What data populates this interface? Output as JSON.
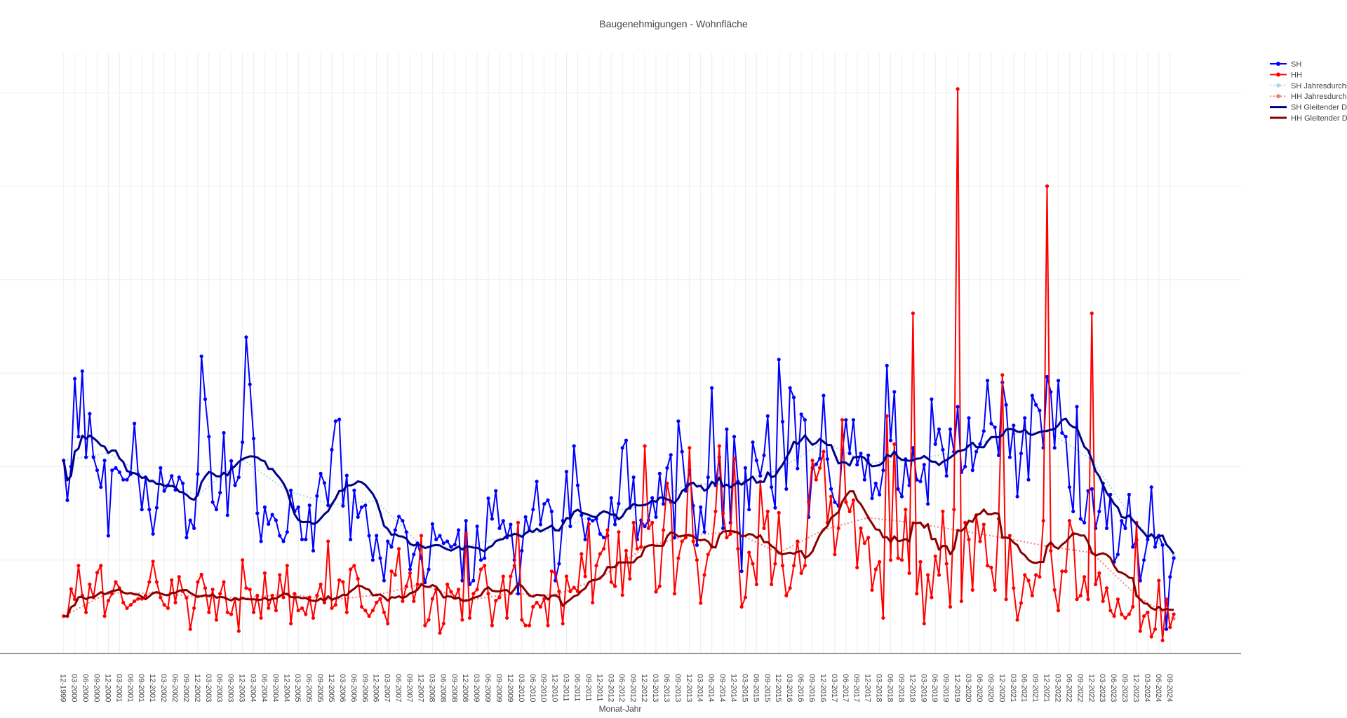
{
  "chart_data": {
    "type": "line",
    "title": "Baugenehmigungen - Wohnfläche",
    "xlabel": "Monat-Jahr",
    "ylabel": "",
    "x_start": "12-1999",
    "x_frequency": "monthly",
    "y_units": "gridline intervals (y-axis labels not visible)",
    "ylim": [
      0,
      6.42
    ],
    "grid": true,
    "legend_position": "top-right",
    "x_tick_labels": [
      "12-1999",
      "03-2000",
      "06-2000",
      "09-2000",
      "12-2000",
      "03-2001",
      "06-2001",
      "09-2001",
      "12-2001",
      "03-2002",
      "06-2002",
      "09-2002",
      "12-2002",
      "03-2003",
      "06-2003",
      "09-2003",
      "12-2003",
      "03-2004",
      "06-2004",
      "09-2004",
      "12-2004",
      "03-2005",
      "06-2005",
      "09-2005",
      "12-2005",
      "03-2006",
      "06-2006",
      "09-2006",
      "12-2006",
      "03-2007",
      "06-2007",
      "09-2007",
      "12-2007",
      "03-2008",
      "06-2008",
      "09-2008",
      "12-2008",
      "03-2009",
      "06-2009",
      "09-2009",
      "12-2009",
      "03-2010",
      "06-2010",
      "09-2010",
      "12-2010",
      "03-2011",
      "06-2011",
      "09-2011",
      "12-2011",
      "03-2012",
      "06-2012",
      "09-2012",
      "12-2012",
      "03-2013",
      "06-2013",
      "09-2013",
      "12-2013",
      "03-2014",
      "06-2014",
      "09-2014",
      "12-2014",
      "03-2015",
      "06-2015",
      "09-2015",
      "12-2015",
      "03-2016",
      "06-2016",
      "09-2016",
      "12-2016",
      "03-2017",
      "06-2017",
      "09-2017",
      "12-2017",
      "03-2018",
      "06-2018",
      "09-2018",
      "12-2018",
      "03-2019",
      "06-2019",
      "09-2019",
      "12-2019",
      "03-2020",
      "06-2020",
      "09-2020",
      "12-2020",
      "03-2021",
      "06-2021",
      "09-2021",
      "12-2021",
      "03-2022",
      "06-2022",
      "09-2022",
      "12-2022",
      "03-2023",
      "06-2023",
      "09-2023",
      "12-2023",
      "03-2024",
      "06-2024",
      "09-2024"
    ],
    "series": [
      {
        "name": "SH",
        "color": "#0000ff",
        "style": "lines+markers",
        "values": [
          2.065,
          1.64,
          2.0,
          2.94,
          2.32,
          3.02,
          2.1,
          2.565,
          2.1,
          1.96,
          1.78,
          2.065,
          1.26,
          1.96,
          1.985,
          1.94,
          1.86,
          1.86,
          1.92,
          2.46,
          1.915,
          1.54,
          1.885,
          1.54,
          1.28,
          1.56,
          1.985,
          1.74,
          1.8,
          1.9,
          1.75,
          1.885,
          1.82,
          1.24,
          1.425,
          1.34,
          1.92,
          3.18,
          2.72,
          2.32,
          1.62,
          1.54,
          1.72,
          2.36,
          1.48,
          2.06,
          1.8,
          1.885,
          2.26,
          3.385,
          2.88,
          2.3,
          1.5,
          1.2,
          1.565,
          1.385,
          1.485,
          1.425,
          1.26,
          1.2,
          1.3,
          1.745,
          1.52,
          1.565,
          1.22,
          1.22,
          1.585,
          1.1,
          1.685,
          1.925,
          1.825,
          1.585,
          2.18,
          2.485,
          2.505,
          1.58,
          1.905,
          1.22,
          1.745,
          1.46,
          1.565,
          1.585,
          1.26,
          1.0,
          1.26,
          1.02,
          0.78,
          1.2,
          1.14,
          1.32,
          1.465,
          1.42,
          1.3,
          0.9,
          1.06,
          1.18,
          1.02,
          0.76,
          0.9,
          1.385,
          1.22,
          1.26,
          1.18,
          1.2,
          1.14,
          1.165,
          1.32,
          0.78,
          1.42,
          0.74,
          0.78,
          1.36,
          1.0,
          1.02,
          1.66,
          1.44,
          1.74,
          1.34,
          1.42,
          1.24,
          1.38,
          1.0,
          0.64,
          1.1,
          1.46,
          1.32,
          1.54,
          1.84,
          1.38,
          1.6,
          1.64,
          1.52,
          0.78,
          0.96,
          1.42,
          1.945,
          1.36,
          2.22,
          1.8,
          1.48,
          1.22,
          1.44,
          1.42,
          1.44,
          1.28,
          1.24,
          1.26,
          1.665,
          1.38,
          1.605,
          2.2,
          2.28,
          1.56,
          1.885,
          1.22,
          1.425,
          1.36,
          1.425,
          1.665,
          1.46,
          1.925,
          1.6,
          1.985,
          2.125,
          1.24,
          2.485,
          2.16,
          1.74,
          1.965,
          1.58,
          1.16,
          1.565,
          1.3,
          1.885,
          2.84,
          1.8,
          2.1,
          1.34,
          2.4,
          1.4,
          2.32,
          1.84,
          0.88,
          1.985,
          1.54,
          2.26,
          2.065,
          1.9,
          2.12,
          2.54,
          1.78,
          1.56,
          3.145,
          2.48,
          1.76,
          2.84,
          2.74,
          1.98,
          2.56,
          2.5,
          1.46,
          1.985,
          2.025,
          2.085,
          2.76,
          2.08,
          1.76,
          1.62,
          1.58,
          2.14,
          2.5,
          2.14,
          2.5,
          2.02,
          2.14,
          1.86,
          2.12,
          1.66,
          1.82,
          1.7,
          1.96,
          3.08,
          2.28,
          2.8,
          1.76,
          1.68,
          2.08,
          1.8,
          2.2,
          1.86,
          1.84,
          2.02,
          1.6,
          2.72,
          2.24,
          2.4,
          2.18,
          1.9,
          2.4,
          2.16,
          2.64,
          1.94,
          2.0,
          2.52,
          1.96,
          2.16,
          2.24,
          2.38,
          2.92,
          2.46,
          2.42,
          2.12,
          2.9,
          2.66,
          2.1,
          2.44,
          1.68,
          2.14,
          2.52,
          1.86,
          2.76,
          2.66,
          2.6,
          2.2,
          2.96,
          2.8,
          2.2,
          2.92,
          2.36,
          2.32,
          1.78,
          1.52,
          2.64,
          1.44,
          1.4,
          1.74,
          1.76,
          1.34,
          1.52,
          1.82,
          1.34,
          1.7,
          0.98,
          1.06,
          1.42,
          1.34,
          1.7,
          1.14,
          1.215,
          0.78,
          1.0,
          1.22,
          1.78,
          1.14,
          1.26,
          1.16,
          0.26,
          0.82,
          1.02
        ]
      },
      {
        "name": "HH",
        "color": "#ff0000",
        "style": "lines+markers",
        "values": [
          0.4,
          0.4,
          0.69,
          0.58,
          0.94,
          0.62,
          0.44,
          0.74,
          0.6,
          0.865,
          0.94,
          0.4,
          0.565,
          0.64,
          0.765,
          0.7,
          0.545,
          0.485,
          0.52,
          0.56,
          0.585,
          0.585,
          0.62,
          0.765,
          0.985,
          0.765,
          0.6,
          0.52,
          0.485,
          0.785,
          0.545,
          0.82,
          0.665,
          0.595,
          0.26,
          0.485,
          0.765,
          0.845,
          0.7,
          0.44,
          0.685,
          0.36,
          0.64,
          0.765,
          0.44,
          0.42,
          0.585,
          0.24,
          1.0,
          0.7,
          0.685,
          0.44,
          0.62,
          0.38,
          0.86,
          0.485,
          0.62,
          0.46,
          0.84,
          0.6,
          0.94,
          0.32,
          0.64,
          0.46,
          0.485,
          0.42,
          0.6,
          0.38,
          0.62,
          0.74,
          0.545,
          1.2,
          0.485,
          0.52,
          0.785,
          0.765,
          0.44,
          0.9,
          0.94,
          0.8,
          0.5,
          0.46,
          0.4,
          0.46,
          0.545,
          0.585,
          0.44,
          0.32,
          0.88,
          0.84,
          1.12,
          0.56,
          0.72,
          0.86,
          0.56,
          0.74,
          1.26,
          0.3,
          0.36,
          0.585,
          0.685,
          0.22,
          0.32,
          0.74,
          0.66,
          0.6,
          0.685,
          0.36,
          1.28,
          0.38,
          0.64,
          0.685,
          0.9,
          0.94,
          0.64,
          0.3,
          0.565,
          0.6,
          0.825,
          0.38,
          0.825,
          0.94,
          1.4,
          0.36,
          0.3,
          0.3,
          0.5,
          0.545,
          0.5,
          0.585,
          0.3,
          0.88,
          0.86,
          0.665,
          0.32,
          0.825,
          0.665,
          0.705,
          0.665,
          1.065,
          0.825,
          1.385,
          0.545,
          0.94,
          1.065,
          1.12,
          1.32,
          0.765,
          0.72,
          1.3,
          0.625,
          1.1,
          0.8,
          1.4,
          1.12,
          1.14,
          2.22,
          1.34,
          1.4,
          0.66,
          0.72,
          1.32,
          1.82,
          1.62,
          0.64,
          1.02,
          1.2,
          1.24,
          2.2,
          1.2,
          1.0,
          0.54,
          0.84,
          1.06,
          1.14,
          1.52,
          2.22,
          1.5,
          1.24,
          1.28,
          2.085,
          1.12,
          0.5,
          0.6,
          1.08,
          0.96,
          0.74,
          1.84,
          1.34,
          1.52,
          0.74,
          0.96,
          1.505,
          0.94,
          0.62,
          0.7,
          0.94,
          1.2,
          0.86,
          0.94,
          1.62,
          2.065,
          1.86,
          1.985,
          2.16,
          1.4,
          1.68,
          1.06,
          1.34,
          2.5,
          1.62,
          1.52,
          1.64,
          0.92,
          1.34,
          1.18,
          1.24,
          0.68,
          0.9,
          0.98,
          0.38,
          2.54,
          1.0,
          2.24,
          1.02,
          1.0,
          1.54,
          0.86,
          3.64,
          0.64,
          0.98,
          0.32,
          0.84,
          0.6,
          1.04,
          0.84,
          1.52,
          0.96,
          0.5,
          1.54,
          6.04,
          0.56,
          1.4,
          1.22,
          0.68,
          1.48,
          1.2,
          1.38,
          0.94,
          0.92,
          0.68,
          1.44,
          2.98,
          0.58,
          1.26,
          0.7,
          0.36,
          0.54,
          0.84,
          0.78,
          0.62,
          0.84,
          0.82,
          1.42,
          5.0,
          1.1,
          0.68,
          0.46,
          0.88,
          0.88,
          1.42,
          1.28,
          0.58,
          0.62,
          0.82,
          0.58,
          3.64,
          0.74,
          0.86,
          0.56,
          0.7,
          0.46,
          0.4,
          0.58,
          0.42,
          0.38,
          0.42,
          0.5,
          1.4,
          0.24,
          0.4,
          0.44,
          0.18,
          0.26,
          0.78,
          0.14,
          0.58,
          0.28,
          0.42
        ]
      },
      {
        "name": "SH Jahresdurchschnitt",
        "color": "#add8e6",
        "style": "dotted+markers",
        "derived": "yearly mean of SH"
      },
      {
        "name": "HH Jahresdurchschnitt",
        "color": "#f08080",
        "style": "dotted+markers",
        "derived": "yearly mean of HH"
      },
      {
        "name": "SH Gleitender Durchschnitt",
        "color": "#00008b",
        "style": "line",
        "derived": "12-month rolling mean of SH"
      },
      {
        "name": "HH Gleitender Durchschnitt",
        "color": "#8b0000",
        "style": "line",
        "derived": "12-month rolling mean of HH"
      }
    ]
  }
}
